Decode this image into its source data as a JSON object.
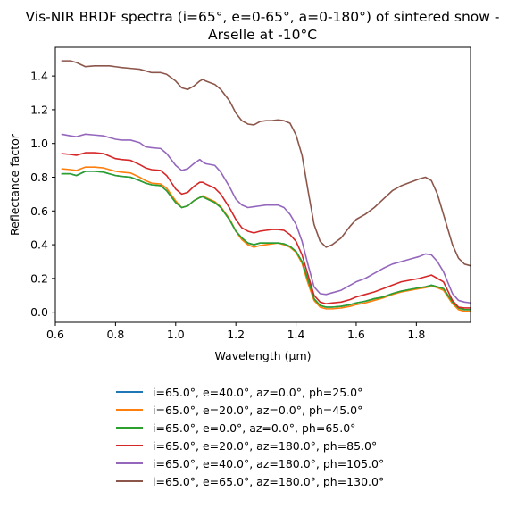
{
  "chart_data": {
    "type": "line",
    "title": "Vis-NIR BRDF spectra (i=65°, e=0-65°, a=0-180°) of sintered snow - Arselle at -10°C",
    "title_lines": [
      "Vis-NIR BRDF spectra (i=65°, e=0-65°, a=0-180°) of sintered snow -",
      "Arselle at -10°C"
    ],
    "xlabel": "Wavelength (μm)",
    "ylabel": "Reflectance factor",
    "xlim": [
      0.6,
      1.98
    ],
    "ylim": [
      -0.06,
      1.57
    ],
    "xticks": [
      0.6,
      0.8,
      1.0,
      1.2,
      1.4,
      1.6,
      1.8
    ],
    "xtick_labels": [
      "0.6",
      "0.8",
      "1.0",
      "1.2",
      "1.4",
      "1.6",
      "1.8"
    ],
    "yticks": [
      0.0,
      0.2,
      0.4,
      0.6,
      0.8,
      1.0,
      1.2,
      1.4
    ],
    "ytick_labels": [
      "0.0",
      "0.2",
      "0.4",
      "0.6",
      "0.8",
      "1.0",
      "1.2",
      "1.4"
    ],
    "grid": false,
    "legend_position": "below",
    "x": [
      0.62,
      0.65,
      0.67,
      0.7,
      0.73,
      0.76,
      0.78,
      0.8,
      0.82,
      0.85,
      0.88,
      0.9,
      0.92,
      0.95,
      0.97,
      1.0,
      1.02,
      1.04,
      1.06,
      1.08,
      1.09,
      1.1,
      1.13,
      1.15,
      1.18,
      1.2,
      1.22,
      1.24,
      1.26,
      1.28,
      1.3,
      1.32,
      1.34,
      1.36,
      1.38,
      1.4,
      1.42,
      1.44,
      1.46,
      1.48,
      1.5,
      1.52,
      1.55,
      1.58,
      1.6,
      1.63,
      1.66,
      1.69,
      1.72,
      1.75,
      1.78,
      1.81,
      1.83,
      1.85,
      1.87,
      1.89,
      1.92,
      1.94,
      1.96,
      1.98
    ],
    "series": [
      {
        "name": "i=65.0°, e=40.0°, az=0.0°, ph=25.0°",
        "color": "#1f77b4",
        "values": [
          0.82,
          0.82,
          0.81,
          0.835,
          0.835,
          0.83,
          0.82,
          0.81,
          0.805,
          0.8,
          0.78,
          0.765,
          0.755,
          0.75,
          0.72,
          0.65,
          0.62,
          0.63,
          0.66,
          0.68,
          0.685,
          0.675,
          0.65,
          0.62,
          0.545,
          0.48,
          0.44,
          0.41,
          0.4,
          0.41,
          0.41,
          0.41,
          0.41,
          0.405,
          0.39,
          0.36,
          0.3,
          0.19,
          0.08,
          0.04,
          0.03,
          0.03,
          0.035,
          0.045,
          0.055,
          0.065,
          0.08,
          0.09,
          0.11,
          0.125,
          0.135,
          0.145,
          0.15,
          0.16,
          0.15,
          0.14,
          0.06,
          0.025,
          0.015,
          0.015
        ]
      },
      {
        "name": "i=65.0°, e=20.0°, az=0.0°, ph=45.0°",
        "color": "#ff7f0e",
        "values": [
          0.85,
          0.845,
          0.84,
          0.86,
          0.86,
          0.855,
          0.845,
          0.835,
          0.83,
          0.825,
          0.8,
          0.78,
          0.765,
          0.76,
          0.735,
          0.66,
          0.62,
          0.63,
          0.66,
          0.68,
          0.69,
          0.68,
          0.655,
          0.625,
          0.55,
          0.48,
          0.43,
          0.4,
          0.385,
          0.395,
          0.4,
          0.405,
          0.41,
          0.4,
          0.385,
          0.355,
          0.29,
          0.17,
          0.07,
          0.03,
          0.02,
          0.02,
          0.025,
          0.035,
          0.045,
          0.055,
          0.07,
          0.085,
          0.105,
          0.12,
          0.13,
          0.14,
          0.145,
          0.155,
          0.145,
          0.13,
          0.05,
          0.015,
          0.005,
          0.005
        ]
      },
      {
        "name": "i=65.0°, e=0.0°, az=0.0°, ph=65.0°",
        "color": "#2ca02c",
        "values": [
          0.82,
          0.82,
          0.81,
          0.835,
          0.835,
          0.83,
          0.82,
          0.81,
          0.805,
          0.8,
          0.78,
          0.765,
          0.755,
          0.75,
          0.72,
          0.65,
          0.62,
          0.63,
          0.66,
          0.68,
          0.685,
          0.675,
          0.65,
          0.62,
          0.545,
          0.48,
          0.44,
          0.41,
          0.4,
          0.41,
          0.41,
          0.41,
          0.41,
          0.405,
          0.39,
          0.36,
          0.3,
          0.19,
          0.08,
          0.04,
          0.03,
          0.03,
          0.035,
          0.045,
          0.055,
          0.065,
          0.08,
          0.09,
          0.11,
          0.125,
          0.135,
          0.145,
          0.15,
          0.16,
          0.15,
          0.14,
          0.06,
          0.025,
          0.015,
          0.015
        ]
      },
      {
        "name": "i=65.0°, e=20.0°, az=180.0°, ph=85.0°",
        "color": "#d62728",
        "values": [
          0.94,
          0.935,
          0.93,
          0.945,
          0.945,
          0.94,
          0.925,
          0.91,
          0.905,
          0.9,
          0.875,
          0.855,
          0.845,
          0.84,
          0.81,
          0.73,
          0.7,
          0.71,
          0.745,
          0.77,
          0.77,
          0.76,
          0.735,
          0.7,
          0.615,
          0.55,
          0.5,
          0.48,
          0.47,
          0.48,
          0.485,
          0.49,
          0.49,
          0.485,
          0.46,
          0.42,
          0.34,
          0.22,
          0.1,
          0.06,
          0.05,
          0.055,
          0.06,
          0.075,
          0.09,
          0.105,
          0.12,
          0.14,
          0.16,
          0.18,
          0.19,
          0.2,
          0.21,
          0.22,
          0.2,
          0.18,
          0.07,
          0.03,
          0.025,
          0.025
        ]
      },
      {
        "name": "i=65.0°, e=40.0°, az=180.0°, ph=105.0°",
        "color": "#9467bd",
        "values": [
          1.055,
          1.045,
          1.04,
          1.055,
          1.05,
          1.045,
          1.035,
          1.025,
          1.02,
          1.02,
          1.005,
          0.98,
          0.975,
          0.97,
          0.94,
          0.87,
          0.84,
          0.85,
          0.88,
          0.905,
          0.89,
          0.88,
          0.87,
          0.83,
          0.74,
          0.67,
          0.635,
          0.62,
          0.625,
          0.63,
          0.635,
          0.635,
          0.635,
          0.62,
          0.58,
          0.52,
          0.42,
          0.28,
          0.15,
          0.11,
          0.105,
          0.115,
          0.13,
          0.16,
          0.18,
          0.2,
          0.23,
          0.26,
          0.285,
          0.3,
          0.315,
          0.33,
          0.345,
          0.34,
          0.3,
          0.24,
          0.11,
          0.07,
          0.06,
          0.055
        ]
      },
      {
        "name": "i=65.0°, e=65.0°, az=180.0°, ph=130.0°",
        "color": "#8c564b",
        "values": [
          1.49,
          1.49,
          1.48,
          1.455,
          1.46,
          1.46,
          1.46,
          1.455,
          1.45,
          1.445,
          1.44,
          1.43,
          1.42,
          1.42,
          1.41,
          1.37,
          1.33,
          1.32,
          1.34,
          1.37,
          1.38,
          1.37,
          1.35,
          1.32,
          1.25,
          1.18,
          1.135,
          1.115,
          1.11,
          1.13,
          1.135,
          1.135,
          1.14,
          1.135,
          1.12,
          1.05,
          0.93,
          0.72,
          0.52,
          0.42,
          0.385,
          0.4,
          0.44,
          0.51,
          0.55,
          0.58,
          0.62,
          0.67,
          0.72,
          0.75,
          0.77,
          0.79,
          0.8,
          0.78,
          0.7,
          0.58,
          0.4,
          0.32,
          0.285,
          0.275
        ]
      }
    ]
  }
}
